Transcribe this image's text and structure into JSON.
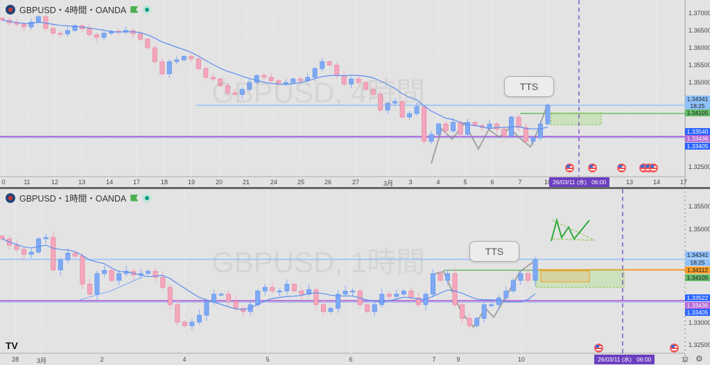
{
  "colors": {
    "up": "#7ea9f5",
    "down": "#f4a7bc",
    "ma": "#5b8def",
    "bg": "#e3e3e3",
    "purple": "#b469d6",
    "green": "#66bb6a",
    "orange": "#f59a23",
    "date_bg": "#6b3fbf"
  },
  "top": {
    "title": "GBPUSD・4時間・OANDA",
    "watermark": "GBPUSD, 4時間",
    "callout": "TTS",
    "y_ticks": [
      "1.37000",
      "1.36500",
      "1.36000",
      "1.35500",
      "1.35000",
      "1.32500"
    ],
    "x_ticks": [
      "0",
      "11",
      "12",
      "13",
      "14",
      "17",
      "18",
      "19",
      "20",
      "21",
      "24",
      "25",
      "26",
      "27",
      "3月",
      "3",
      "4",
      "5",
      "6",
      "7",
      "10",
      "13",
      "14",
      "17"
    ],
    "badges": [
      {
        "text": "1.34341",
        "color": "#8fc1fb",
        "dark": true
      },
      {
        "text": "18:25",
        "color": "#8fc1fb",
        "dark": true
      },
      {
        "text": "1.34105",
        "color": "#66bb6a",
        "dark": true
      },
      {
        "text": "1.33540",
        "color": "#2962ff"
      },
      {
        "text": "1.33436",
        "color": "#b469d6"
      },
      {
        "text": "1.33405",
        "color": "#2962ff"
      }
    ],
    "date_label": "26/03/11 (水)   06:00"
  },
  "bottom": {
    "title": "GBPUSD・1時間・OANDA",
    "watermark": "GBPUSD, 1時間",
    "callout": "TTS",
    "y_ticks": [
      "1.35500",
      "1.35000",
      "1.33000",
      "1.32500"
    ],
    "x_ticks": [
      "28",
      "3月",
      "2",
      "4",
      "5",
      "6",
      "7",
      "9",
      "10",
      "12"
    ],
    "badges": [
      {
        "text": "1.34341",
        "color": "#8fc1fb",
        "dark": true
      },
      {
        "text": "18:25",
        "color": "#8fc1fb",
        "dark": true
      },
      {
        "text": "1.34112",
        "color": "#f59a23",
        "dark": true
      },
      {
        "text": "1.34105",
        "color": "#66bb6a",
        "dark": true
      },
      {
        "text": "1.33522",
        "color": "#2962ff"
      },
      {
        "text": "1.33436",
        "color": "#b469d6"
      },
      {
        "text": "1.33405",
        "color": "#2962ff"
      }
    ],
    "date_label": "26/03/11 (水)   06:00"
  },
  "logo": "TV",
  "chart_data": [
    {
      "type": "candlestick",
      "title": "GBPUSD・4時間・OANDA",
      "ylim": [
        1.3215,
        1.3735
      ],
      "levels": {
        "blue": 1.34341,
        "green": 1.34105,
        "purple": 1.33436,
        "blue_low": 1.33405
      },
      "closes": [
        1.368,
        1.3672,
        1.3668,
        1.366,
        1.3674,
        1.369,
        1.3656,
        1.3642,
        1.364,
        1.365,
        1.3664,
        1.3655,
        1.3638,
        1.363,
        1.3642,
        1.3648,
        1.3645,
        1.365,
        1.364,
        1.3625,
        1.36,
        1.356,
        1.3525,
        1.356,
        1.3565,
        1.3575,
        1.3568,
        1.354,
        1.3515,
        1.351,
        1.349,
        1.347,
        1.3465,
        1.348,
        1.35,
        1.352,
        1.3515,
        1.3505,
        1.3498,
        1.35,
        1.351,
        1.3505,
        1.3515,
        1.354,
        1.356,
        1.355,
        1.352,
        1.3495,
        1.351,
        1.35,
        1.348,
        1.3465,
        1.342,
        1.344,
        1.3445,
        1.34,
        1.341,
        1.343,
        1.333,
        1.335,
        1.338,
        1.336,
        1.3385,
        1.335,
        1.3385,
        1.3375,
        1.337,
        1.338,
        1.3365,
        1.3345,
        1.34,
        1.337,
        1.333,
        1.334,
        1.338,
        1.3434
      ]
    },
    {
      "type": "candlestick",
      "title": "GBPUSD・1時間・OANDA",
      "ylim": [
        1.324,
        1.358
      ],
      "levels": {
        "blue": 1.34341,
        "orange": 1.34112,
        "green": 1.34105,
        "purple": 1.33436,
        "blue_low": 1.33405
      },
      "closes": [
        1.3479,
        1.3465,
        1.3456,
        1.3445,
        1.345,
        1.3479,
        1.3482,
        1.3411,
        1.3433,
        1.3448,
        1.3441,
        1.338,
        1.3358,
        1.3403,
        1.341,
        1.3388,
        1.3403,
        1.3408,
        1.34,
        1.3403,
        1.3408,
        1.3395,
        1.3373,
        1.3335,
        1.3297,
        1.3289,
        1.3297,
        1.3312,
        1.3342,
        1.3358,
        1.3358,
        1.3342,
        1.3327,
        1.332,
        1.3335,
        1.3365,
        1.3373,
        1.3365,
        1.3365,
        1.338,
        1.3365,
        1.3358,
        1.3368,
        1.3335,
        1.332,
        1.3327,
        1.3358,
        1.3365,
        1.3365,
        1.3335,
        1.332,
        1.3335,
        1.3358,
        1.3353,
        1.3358,
        1.3365,
        1.335,
        1.3335,
        1.3358,
        1.3403,
        1.3388,
        1.3403,
        1.3335,
        1.3305,
        1.3289,
        1.3305,
        1.3335,
        1.3335,
        1.335,
        1.3365,
        1.3388,
        1.3403,
        1.3388,
        1.3434
      ]
    }
  ]
}
